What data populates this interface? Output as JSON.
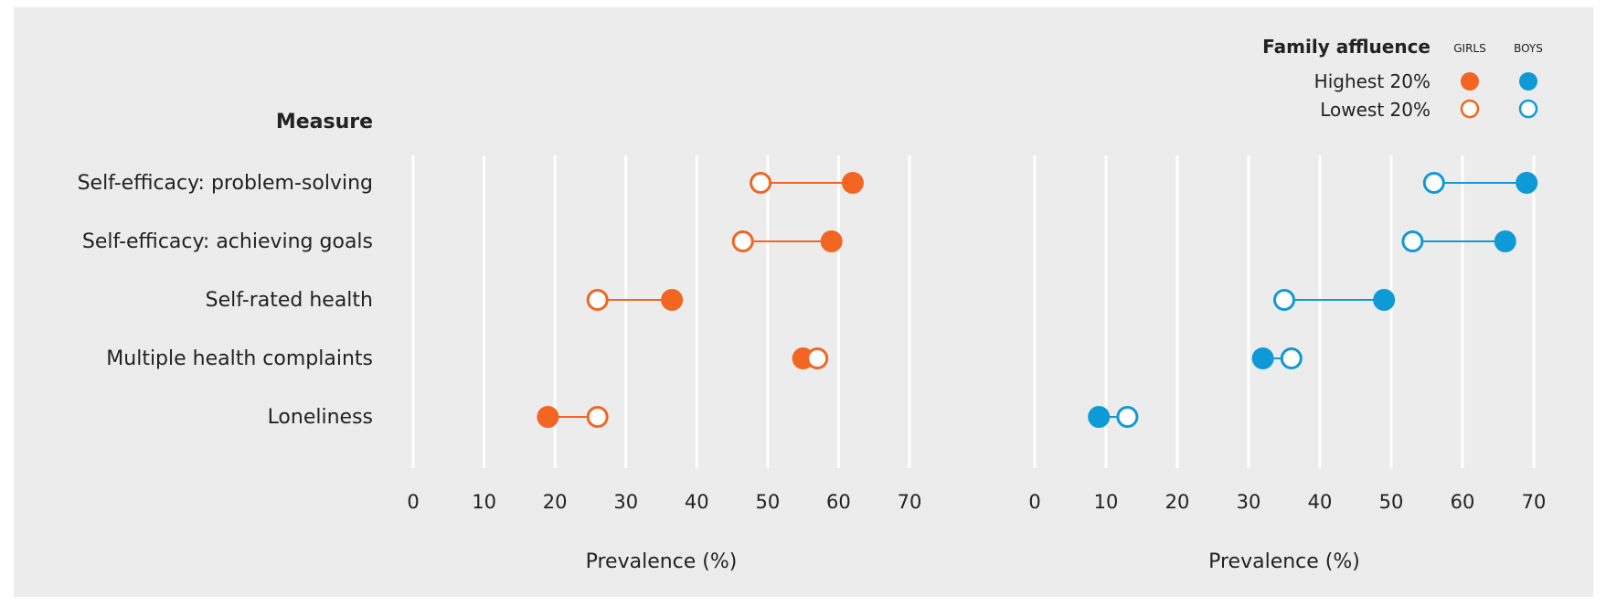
{
  "chart_data": {
    "type": "scatter",
    "subtype": "dumbbell",
    "measures_header": "Measure",
    "categories": [
      "Self-efficacy: problem-solving",
      "Self-efficacy: achieving goals",
      "Self-rated health",
      "Multiple health complaints",
      "Loneliness"
    ],
    "panels": [
      {
        "group": "girls",
        "color": "#f26522",
        "xlabel": "Prevalence (%)",
        "xlim": [
          0,
          70
        ],
        "ticks": [
          0,
          10,
          20,
          30,
          40,
          50,
          60,
          70
        ],
        "series": [
          {
            "name": "Highest 20%",
            "marker": "filled",
            "values": [
              62,
              59,
              36.5,
              55,
              19
            ]
          },
          {
            "name": "Lowest 20%",
            "marker": "open",
            "values": [
              49,
              46.5,
              26,
              57,
              26
            ]
          }
        ]
      },
      {
        "group": "boys",
        "color": "#0e9ad7",
        "xlabel": "Prevalence (%)",
        "xlim": [
          0,
          70
        ],
        "ticks": [
          0,
          10,
          20,
          30,
          40,
          50,
          60,
          70
        ],
        "series": [
          {
            "name": "Highest 20%",
            "marker": "filled",
            "values": [
              69,
              66,
              49,
              32,
              9
            ]
          },
          {
            "name": "Lowest 20%",
            "marker": "open",
            "values": [
              56,
              53,
              35,
              36,
              13
            ]
          }
        ]
      }
    ],
    "legend": {
      "title": "Family affluence",
      "columns": [
        "GIRLS",
        "BOYS"
      ],
      "rows": [
        "Highest 20%",
        "Lowest 20%"
      ],
      "placement": "top-right"
    },
    "grid": true
  },
  "colors": {
    "panel_background": "#ececec",
    "gridline": "#ffffff",
    "girls": "#f26522",
    "boys": "#0e9ad7"
  }
}
